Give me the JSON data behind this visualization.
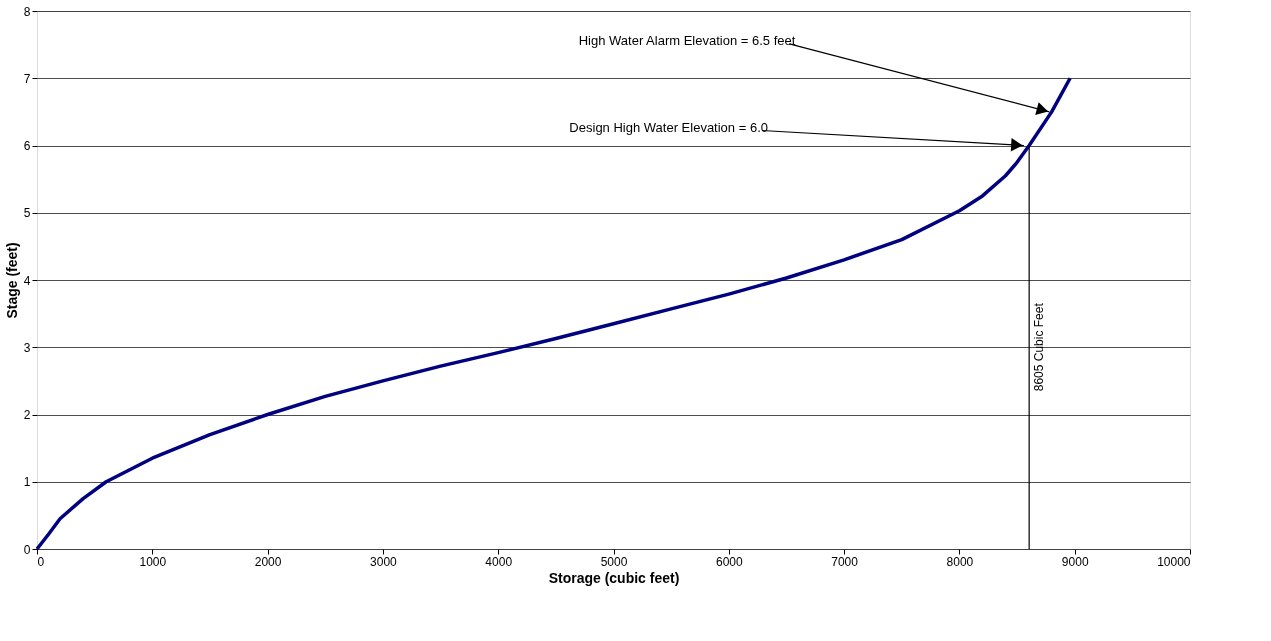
{
  "chart_data": {
    "type": "line",
    "xlabel": "Storage (cubic feet)",
    "ylabel": "Stage (feet)",
    "x": [
      0,
      100,
      200,
      400,
      600,
      1000,
      1500,
      2000,
      2500,
      3000,
      3500,
      4000,
      4500,
      5000,
      5500,
      6000,
      6500,
      7000,
      7500,
      8000,
      8200,
      8400,
      8500,
      8605,
      8800,
      8960
    ],
    "series": [
      {
        "color": "#000080",
        "values": [
          0,
          0.22,
          0.45,
          0.75,
          1.0,
          1.35,
          1.7,
          2.0,
          2.27,
          2.5,
          2.72,
          2.92,
          3.13,
          3.35,
          3.57,
          3.79,
          4.03,
          4.3,
          4.6,
          5.03,
          5.25,
          5.55,
          5.75,
          6.0,
          6.5,
          7.0
        ]
      }
    ],
    "xlim": [
      0,
      10000
    ],
    "xticks": [
      0,
      1000,
      2000,
      3000,
      4000,
      5000,
      6000,
      7000,
      8000,
      9000,
      10000
    ],
    "ylim": [
      0,
      8
    ],
    "yticks": [
      0,
      1,
      2,
      3,
      4,
      5,
      6,
      7,
      8
    ],
    "grid": "y",
    "marker": "none",
    "line_style": "solid",
    "ref_lines": [
      {
        "axis": "x",
        "value": 8605,
        "label": "8605 Cubic Feet",
        "color": "#000000"
      }
    ],
    "annotations": [
      {
        "text": "High Water Alarm Elevation = 6.5 feet",
        "x": 8780,
        "y": 6.5
      },
      {
        "text": "Design High Water Elevation = 6.0",
        "x": 8560,
        "y": 6.0
      }
    ]
  }
}
